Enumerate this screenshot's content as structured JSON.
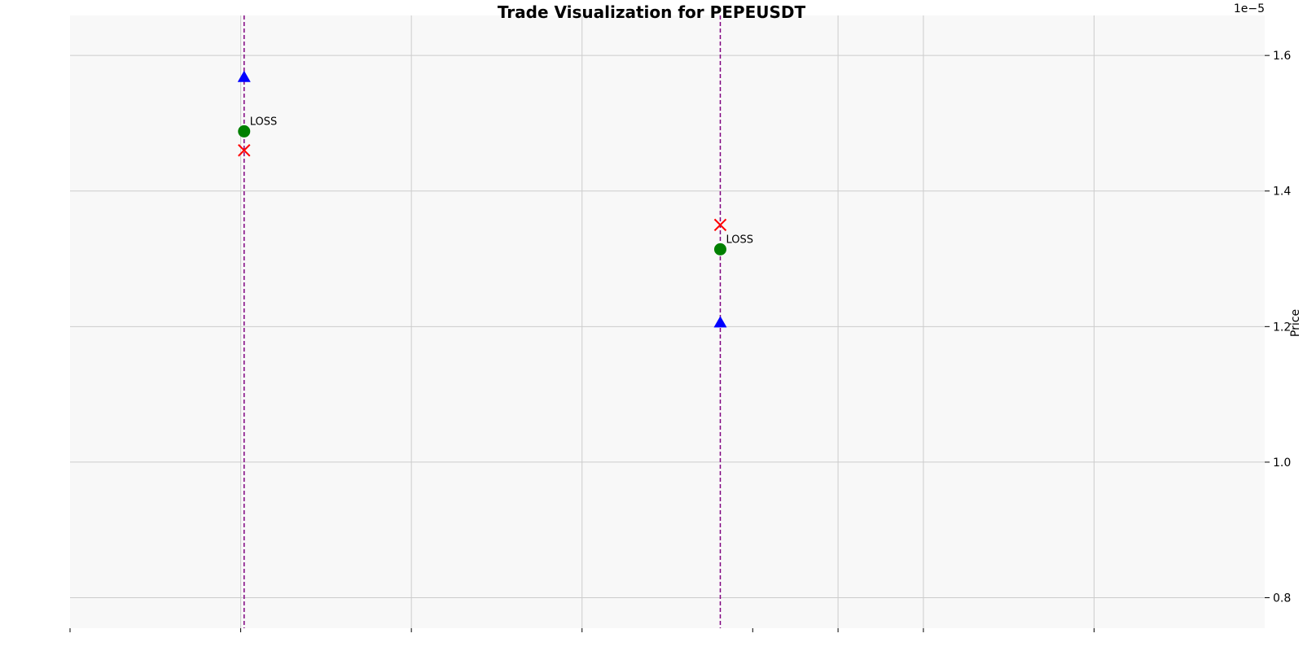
{
  "chart_data": {
    "type": "scatter",
    "title": "Trade Visualization for PEPEUSDT",
    "xlabel": "",
    "ylabel": "Price",
    "y_offset_text": "1e−5",
    "y_axis_side": "right",
    "grid": true,
    "ylim": [
      7.55e-06,
      1.659e-05
    ],
    "yticks": [
      8e-06,
      1e-05,
      1.2e-05,
      1.4e-05,
      1.6e-05
    ],
    "ytick_labels": [
      "0.8",
      "1.0",
      "1.2",
      "1.4",
      "1.6"
    ],
    "xlim": [
      0,
      7
    ],
    "xticks": [
      0,
      1,
      2,
      3,
      4,
      4.5,
      5,
      6
    ],
    "xgrid": [
      1,
      2,
      3,
      4.5,
      5,
      6
    ],
    "xtick_labels": [],
    "trades": [
      {
        "x": 1.02,
        "entry": 1.488e-05,
        "target": 1.568e-05,
        "stop": 1.46e-05,
        "result": "LOSS"
      },
      {
        "x": 3.81,
        "entry": 1.314e-05,
        "target": 1.206e-05,
        "stop": 1.35e-05,
        "result": "LOSS"
      }
    ],
    "colors": {
      "entry": "#008000",
      "target": "#0000ff",
      "stop": "#ff0000",
      "vline": "#800080",
      "plot_bg": "#f8f8f8",
      "grid": "#cccccc"
    }
  }
}
